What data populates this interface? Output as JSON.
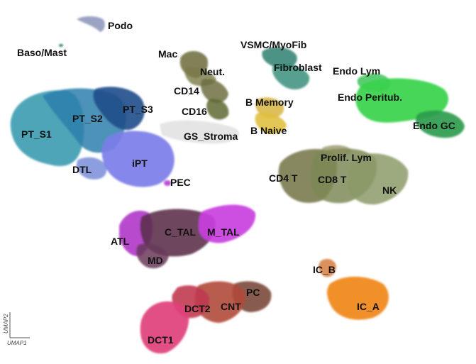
{
  "chart_data": {
    "type": "scatter",
    "title": "",
    "xlabel": "UMAP1",
    "ylabel": "UMAP2",
    "grid": false,
    "legend": "none",
    "clusters": [
      {
        "name": "Podo",
        "color": "#8a93b8"
      },
      {
        "name": "Baso/Mast",
        "color": "#2e8b57"
      },
      {
        "name": "PT_S1",
        "color": "#3a9bb0"
      },
      {
        "name": "PT_S2",
        "color": "#2f6fa0"
      },
      {
        "name": "PT_S3",
        "color": "#1f4e8a"
      },
      {
        "name": "DTL",
        "color": "#6f86d6"
      },
      {
        "name": "iPT",
        "color": "#7b7de8"
      },
      {
        "name": "PEC",
        "color": "#c04fd8"
      },
      {
        "name": "Mac",
        "color": "#6b6a3a"
      },
      {
        "name": "Neut.",
        "color": "#7a7a48"
      },
      {
        "name": "CD14",
        "color": "#6e7040"
      },
      {
        "name": "CD16",
        "color": "#5f6a32"
      },
      {
        "name": "GS_Stroma",
        "color": "#b8b8b8"
      },
      {
        "name": "VSMC/MyoFib",
        "color": "#2e8070"
      },
      {
        "name": "Fibroblast",
        "color": "#3a8f7c"
      },
      {
        "name": "B Memory",
        "color": "#d9b84a"
      },
      {
        "name": "B Naive",
        "color": "#e0c040"
      },
      {
        "name": "Endo Lym",
        "color": "#3cc45a"
      },
      {
        "name": "Endo Peritub.",
        "color": "#36d24a"
      },
      {
        "name": "Endo GC",
        "color": "#2a9a4a"
      },
      {
        "name": "Prolif. Lym",
        "color": "#8a8a5a"
      },
      {
        "name": "CD4 T",
        "color": "#7a7a50"
      },
      {
        "name": "CD8 T",
        "color": "#7e8a58"
      },
      {
        "name": "NK",
        "color": "#8c9a68"
      },
      {
        "name": "ATL",
        "color": "#b036c8"
      },
      {
        "name": "C_TAL",
        "color": "#5a2e4a"
      },
      {
        "name": "M_TAL",
        "color": "#c93fe0"
      },
      {
        "name": "MD",
        "color": "#6a3a5a"
      },
      {
        "name": "IC_B",
        "color": "#d8844a"
      },
      {
        "name": "IC_A",
        "color": "#f08a20"
      },
      {
        "name": "PC",
        "color": "#7a4a3a"
      },
      {
        "name": "CNT",
        "color": "#b04a3a"
      },
      {
        "name": "DCT2",
        "color": "#c03a50"
      },
      {
        "name": "DCT1",
        "color": "#e0407a"
      }
    ]
  }
}
